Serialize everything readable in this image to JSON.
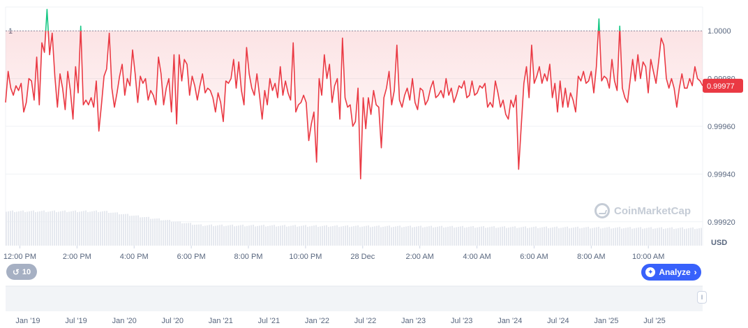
{
  "chart_data": {
    "type": "line",
    "currency": "USD",
    "reference_value": 1,
    "reference_label": "1",
    "current_value": 0.99977,
    "current_label": "0.99977",
    "ylim": [
      0.9991,
      1.0001
    ],
    "y_ticks": [
      "1.0000",
      "0.99980",
      "0.99960",
      "0.99940",
      "0.99920"
    ],
    "y_tick_values": [
      1.0,
      0.9998,
      0.9996,
      0.9994,
      0.9992
    ],
    "x_ticks": [
      "12:00 PM",
      "2:00 PM",
      "4:00 PM",
      "6:00 PM",
      "8:00 PM",
      "10:00 PM",
      "28 Dec",
      "2:00 AM",
      "4:00 AM",
      "6:00 AM",
      "8:00 AM",
      "10:00 AM"
    ],
    "x_tick_hours": [
      1,
      3,
      5,
      7,
      9,
      11,
      13,
      15,
      17,
      19,
      21,
      23
    ],
    "x_range_hours": [
      0.5,
      24.9
    ],
    "above_color": "#16c784",
    "below_color": "#ea3943",
    "grid": true,
    "series": [
      {
        "values": [
          0.9997,
          0.99983,
          0.99976,
          0.99973,
          0.99977,
          0.99975,
          0.99978,
          0.99966,
          0.9997,
          0.9998,
          0.99979,
          0.99971,
          0.99989,
          0.99969,
          0.99995,
          0.99991,
          1.00009,
          0.9999,
          0.99999,
          0.99981,
          0.99968,
          0.99982,
          0.99976,
          0.99967,
          0.99983,
          0.99975,
          0.99963,
          0.99985,
          0.99974,
          1.00002,
          0.99969,
          0.99971,
          0.99969,
          0.99972,
          0.99968,
          0.99979,
          0.99958,
          0.99969,
          0.99981,
          0.99984,
          0.99999,
          0.99976,
          0.99968,
          0.99974,
          0.99981,
          0.99986,
          0.99973,
          0.9998,
          0.99977,
          0.99992,
          0.99982,
          0.9997,
          0.99981,
          0.99978,
          0.9998,
          0.99971,
          0.99975,
          0.99973,
          0.99969,
          0.99989,
          0.99982,
          0.99969,
          0.99976,
          0.9998,
          0.99966,
          0.9999,
          0.99961,
          0.9999,
          0.99979,
          0.99988,
          0.99986,
          0.99973,
          0.99981,
          0.99977,
          0.99971,
          0.99977,
          0.99982,
          0.99974,
          0.99976,
          0.99975,
          0.99972,
          0.99966,
          0.99974,
          0.9997,
          0.99962,
          0.99979,
          0.99978,
          0.9998,
          0.99988,
          0.99976,
          0.99987,
          0.99975,
          0.99969,
          0.99993,
          0.99982,
          0.99976,
          0.99973,
          0.99982,
          0.99973,
          0.99963,
          0.99975,
          0.99969,
          0.9998,
          0.99975,
          0.99978,
          0.99972,
          0.99985,
          0.99973,
          0.99979,
          0.99974,
          0.99971,
          0.99995,
          0.99966,
          0.99969,
          0.9997,
          0.99973,
          0.9997,
          0.99954,
          0.99961,
          0.99966,
          0.99945,
          0.9998,
          0.99973,
          0.9999,
          0.9998,
          0.99986,
          0.9997,
          0.99977,
          0.9998,
          0.99963,
          0.99997,
          0.99972,
          0.99968,
          0.99969,
          0.9996,
          0.99962,
          0.99976,
          0.99938,
          0.99972,
          0.99959,
          0.99972,
          0.99965,
          0.99975,
          0.99969,
          0.99968,
          0.99951,
          0.99972,
          0.99976,
          0.99983,
          0.99969,
          0.99975,
          0.99994,
          0.99971,
          0.99968,
          0.99973,
          0.99976,
          0.99971,
          0.9998,
          0.9997,
          0.99967,
          0.99976,
          0.99975,
          0.99969,
          0.99971,
          0.99976,
          0.99979,
          0.99972,
          0.99973,
          0.99975,
          0.99972,
          0.9998,
          0.99973,
          0.99976,
          0.9997,
          0.99973,
          0.99977,
          0.99976,
          0.99979,
          0.99972,
          0.99973,
          0.99979,
          0.99973,
          0.99974,
          0.99977,
          0.99976,
          0.99978,
          0.99968,
          0.9997,
          0.99968,
          0.99979,
          0.99974,
          0.99968,
          0.99971,
          0.99965,
          0.99963,
          0.99971,
          0.99968,
          0.99973,
          0.99942,
          0.9996,
          0.99978,
          0.99985,
          0.99972,
          0.99994,
          0.99978,
          0.99981,
          0.99985,
          0.99978,
          0.99982,
          0.99979,
          0.99986,
          0.99972,
          0.99978,
          0.99966,
          0.99979,
          0.99968,
          0.99976,
          0.99968,
          0.99974,
          0.99971,
          0.99966,
          0.99981,
          0.99979,
          0.99983,
          0.99978,
          0.99979,
          0.99983,
          0.99974,
          0.99985,
          1.00005,
          0.99979,
          0.99981,
          0.9998,
          0.99976,
          0.99988,
          0.99979,
          0.99975,
          1.00002,
          0.99976,
          0.99972,
          0.9997,
          0.99979,
          0.99988,
          0.99979,
          0.9999,
          0.9998,
          0.99987,
          0.99985,
          0.99974,
          0.99988,
          0.99983,
          0.99978,
          0.99987,
          0.99997,
          0.99994,
          0.9998,
          0.99976,
          0.9998,
          0.99976,
          0.99968,
          0.99976,
          0.99982,
          0.99976,
          0.99976,
          0.9998,
          0.99977,
          0.99985,
          0.9998,
          0.99979,
          0.99977
        ]
      }
    ]
  },
  "ui": {
    "currency_label": "USD",
    "history_days": "10",
    "analyze_label": "Analyze",
    "watermark_text": "CoinMarketCap",
    "navigator_ticks": [
      "Jan '19",
      "Jul '19",
      "Jan '20",
      "Jul '20",
      "Jan '21",
      "Jul '21",
      "Jan '22",
      "Jul '22",
      "Jan '23",
      "Jul '23",
      "Jan '24",
      "Jul '24",
      "Jan '25",
      "Jul '25"
    ]
  }
}
